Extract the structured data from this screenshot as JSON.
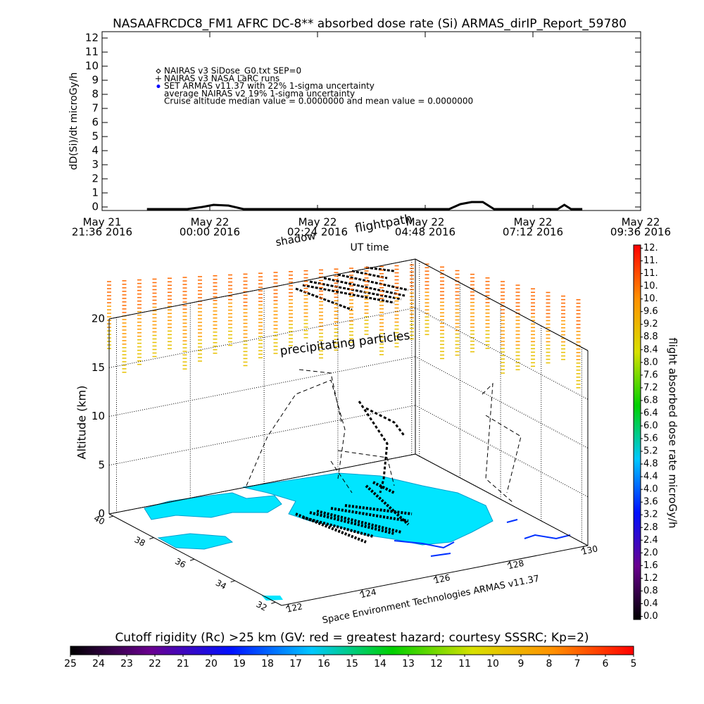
{
  "title": "NASAAFRCDC8_FM1 AFRC DC-8** absorbed dose rate (Si) ARMAS_dirIP_Report_59780",
  "chart_data": [
    {
      "type": "line",
      "y_label": "dD(Si)/dt microGy/h",
      "x_label": "UT time",
      "legend": [
        "NAIRAS v3 SiDose_G0.txt SEP=0",
        "NAIRAS v3 NASA LaRC runs",
        "SET ARMAS v11.37 with 22% 1-sigma uncertainty",
        "average NAIRAS v2 19% 1-sigma uncertainty",
        "Cruise altitude median value = 0.0000000 and mean value = 0.0000000"
      ],
      "legend_colors": [
        "#000000",
        "#000000",
        "#0000ff"
      ],
      "xlim": [
        "2016-05-21 21:36",
        "2016-05-22 09:36"
      ],
      "xticks": [
        {
          "value": "2016-05-21 21:36",
          "label": [
            "May 21",
            "21:36 2016"
          ]
        },
        {
          "value": "2016-05-22 00:00",
          "label": [
            "May 22",
            "00:00 2016"
          ]
        },
        {
          "value": "2016-05-22 02:24",
          "label": [
            "May 22",
            "02:24 2016"
          ]
        },
        {
          "value": "2016-05-22 04:48",
          "label": [
            "May 22",
            "04:48 2016"
          ]
        },
        {
          "value": "2016-05-22 07:12",
          "label": [
            "May 22",
            "07:12 2016"
          ]
        },
        {
          "value": "2016-05-22 09:36",
          "label": [
            "May 22",
            "09:36 2016"
          ]
        }
      ],
      "ylim": [
        -0.25,
        12.45
      ],
      "yticks": [
        0,
        1,
        2,
        3,
        4,
        5,
        6,
        7,
        8,
        9,
        10,
        11,
        12
      ],
      "series": [
        {
          "color": "#000000",
          "x": [
            "2016-05-21 22:36",
            "2016-05-21 23:30",
            "2016-05-21 23:50",
            "2016-05-22 00:05",
            "2016-05-22 00:25",
            "2016-05-22 00:45",
            "2016-05-22 05:20",
            "2016-05-22 05:35",
            "2016-05-22 05:50",
            "2016-05-22 06:05",
            "2016-05-22 06:20",
            "2016-05-22 07:45",
            "2016-05-22 07:54",
            "2016-05-22 08:03",
            "2016-05-22 08:18"
          ],
          "values": [
            -0.15,
            -0.15,
            0.0,
            0.15,
            0.1,
            -0.15,
            -0.15,
            0.2,
            0.35,
            0.35,
            -0.15,
            -0.15,
            0.15,
            -0.15,
            -0.15
          ]
        }
      ]
    },
    {
      "type": "surface3d",
      "z_label": "Altitude (km)",
      "zlim": [
        0,
        20
      ],
      "zticks": [
        0,
        5,
        10,
        15,
        20
      ],
      "latlim": [
        31.7,
        40.2
      ],
      "latticks": [
        40,
        38,
        36,
        34,
        32
      ],
      "lonlim": [
        121.8,
        130.1
      ],
      "lonticks": [
        122,
        124,
        126,
        128,
        130
      ],
      "annotations": [
        "shadow",
        "flightpath",
        "precipitating particles",
        "Space Environment Technologies ARMAS v11.37"
      ]
    },
    {
      "type": "colorbar",
      "label": "flight absorbed dose rate microGy/h",
      "ylim": [
        -0.1,
        11.7
      ],
      "colormap": [
        "#000000",
        "#6a0090",
        "#0010ff",
        "#00c8ff",
        "#00d000",
        "#d8e000",
        "#ff9000",
        "#ff0000"
      ],
      "yticks": [
        {
          "value": 0,
          "label": "0.0"
        },
        0.4,
        0.8,
        1.2,
        1.6,
        {
          "value": 2,
          "label": "2.0"
        },
        2.4,
        2.8,
        3.2,
        3.6,
        {
          "value": 4,
          "label": "4.0"
        },
        4.4,
        4.8,
        5.2,
        5.6,
        {
          "value": 6,
          "label": "6.0"
        },
        6.4,
        6.8,
        7.2,
        7.6,
        {
          "value": 8,
          "label": "8.0"
        },
        8.4,
        8.8,
        9.2,
        9.6,
        {
          "value": 10,
          "label": "10."
        },
        {
          "value": 10.4,
          "label": "10."
        },
        {
          "value": 10.8,
          "label": "11."
        },
        {
          "value": 11.2,
          "label": "11."
        },
        {
          "value": 11.6,
          "label": "12."
        }
      ]
    },
    {
      "type": "colorbar",
      "title": "Cutoff rigidity (Rc) >25 km (GV: red = greatest hazard; courtesy SSSRC; Kp=2)",
      "xlim": [
        25,
        5
      ],
      "colormap": [
        "#000000",
        "#6a0090",
        "#0010ff",
        "#00c8ff",
        "#00d000",
        "#d8e000",
        "#ff9000",
        "#ff0000"
      ],
      "xticks": [
        25,
        24,
        23,
        22,
        21,
        20,
        19,
        18,
        17,
        16,
        15,
        14,
        13,
        12,
        11,
        10,
        9,
        8,
        7,
        6,
        5
      ]
    }
  ]
}
